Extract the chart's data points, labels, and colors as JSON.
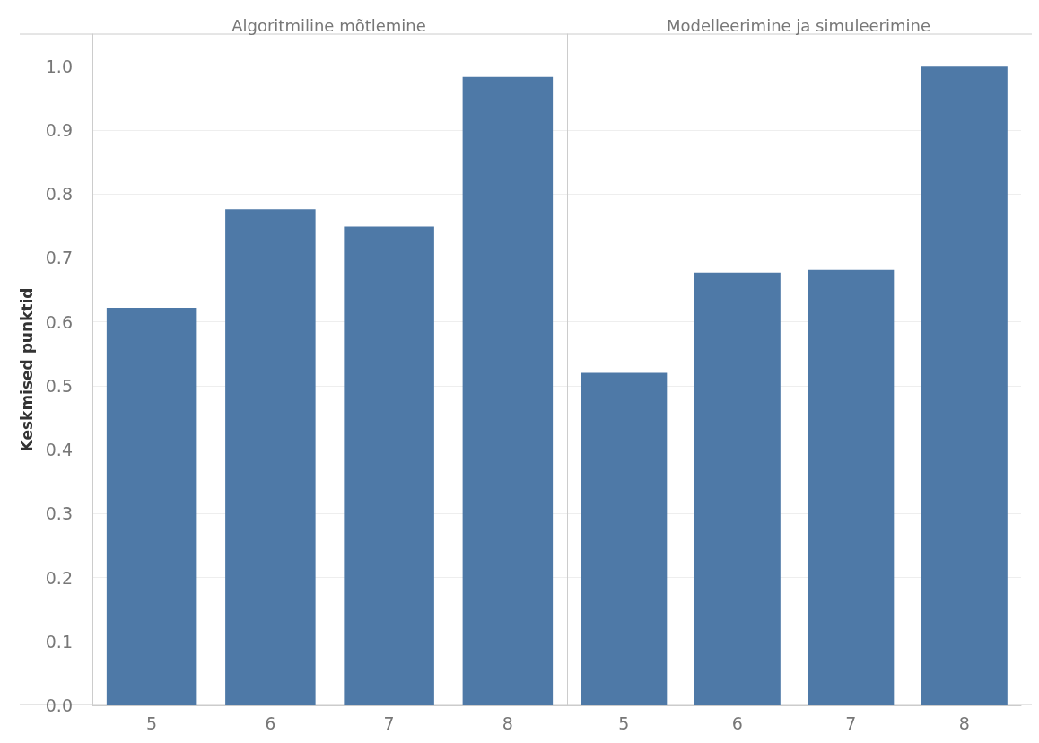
{
  "chart_data": [
    {
      "type": "bar",
      "title": "Algoritmiline mõtlemine",
      "ylabel": "Keskmised punktid",
      "categories": [
        "5",
        "6",
        "7",
        "8"
      ],
      "values": [
        0.622,
        0.776,
        0.749,
        0.983
      ],
      "color": "#4e79a7",
      "ylim": [
        0,
        1.05
      ],
      "yticks": [
        {
          "value": 0,
          "label": "0.0"
        },
        0.1,
        0.2,
        0.3,
        0.4,
        0.5,
        0.6,
        0.7,
        0.8,
        0.9,
        {
          "value": 1,
          "label": "1.0"
        }
      ],
      "grid": "y"
    },
    {
      "type": "bar",
      "title": "Modelleerimine ja simuleerimine",
      "categories": [
        "5",
        "6",
        "7",
        "8"
      ],
      "values": [
        0.52,
        0.677,
        0.681,
        0.999
      ],
      "color": "#4e79a7",
      "ylim": [
        0,
        1.05
      ],
      "yticks": [
        0,
        0.1,
        0.2,
        0.3,
        0.4,
        0.5,
        0.6,
        0.7,
        0.8,
        0.9,
        1
      ],
      "grid": "y",
      "tick_labels": "x"
    }
  ]
}
